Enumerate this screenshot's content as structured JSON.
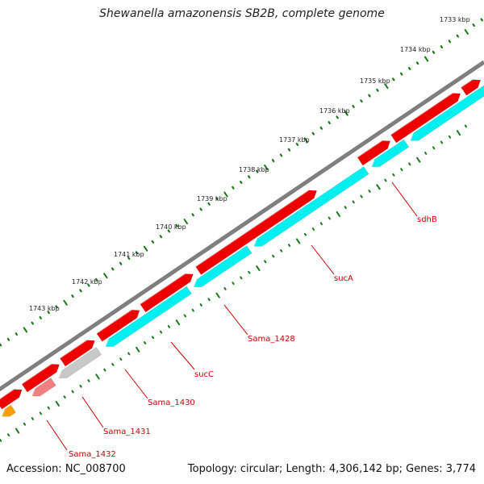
{
  "title": "Shewanella amazonensis SB2B, complete genome",
  "footer": {
    "accession": "Accession: NC_008700",
    "summary": "Topology: circular; Length: 4,306,142 bp; Genes: 3,774"
  },
  "scale_ticks": [
    "1733 kbp",
    "1734 kbp",
    "1735 kbp",
    "1736 kbp",
    "1737 kbp",
    "1738 kbp",
    "1739 kbp",
    "1740 kbp",
    "1741 kbp",
    "1742 kbp",
    "1743 kbp"
  ],
  "genes": [
    {
      "name": "sdhB"
    },
    {
      "name": "sucA"
    },
    {
      "name": "Sama_1428"
    },
    {
      "name": "sucC"
    },
    {
      "name": "Sama_1430"
    },
    {
      "name": "Sama_1431"
    },
    {
      "name": "Sama_1432"
    }
  ],
  "colors": {
    "backbone": "#7f7f7f",
    "gene_red": "#ee0000",
    "gene_cyan": "#00f0f0",
    "gene_grey": "#c8c8c8",
    "gene_pink": "#f08080",
    "gene_orange": "#ffa000",
    "tick_green": "#1a7a1a",
    "label_red": "#d00000"
  }
}
